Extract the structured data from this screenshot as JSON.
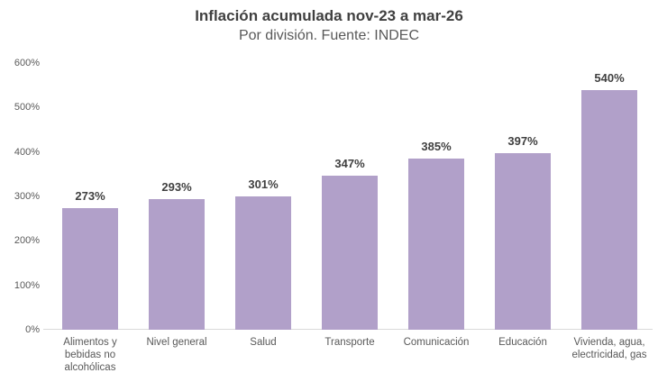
{
  "chart_data": {
    "type": "bar",
    "title": "Inflación acumulada nov-23 a mar-26",
    "subtitle": "Por división. Fuente: INDEC",
    "categories": [
      "Alimentos y bebidas no alcohólicas",
      "Nivel general",
      "Salud",
      "Transporte",
      "Comunicación",
      "Educación",
      "Vivienda, agua, electricidad, gas"
    ],
    "values": [
      273,
      293,
      301,
      347,
      385,
      397,
      540
    ],
    "data_labels": [
      "273%",
      "293%",
      "301%",
      "347%",
      "385%",
      "397%",
      "540%"
    ],
    "xlabel": "",
    "ylabel": "",
    "ylim": [
      0,
      600
    ],
    "ytick_values": [
      0,
      100,
      200,
      300,
      400,
      500,
      600
    ],
    "ytick_labels": [
      "0%",
      "100%",
      "200%",
      "300%",
      "400%",
      "500%",
      "600%"
    ],
    "grid": false,
    "legend": "none",
    "colors": {
      "bar_fill": "#b1a0c9",
      "title_text": "#404040",
      "subtitle_text": "#595959",
      "axis_text": "#595959",
      "data_label_text": "#404040",
      "baseline": "#d9d9d9",
      "background": "#ffffff"
    }
  }
}
